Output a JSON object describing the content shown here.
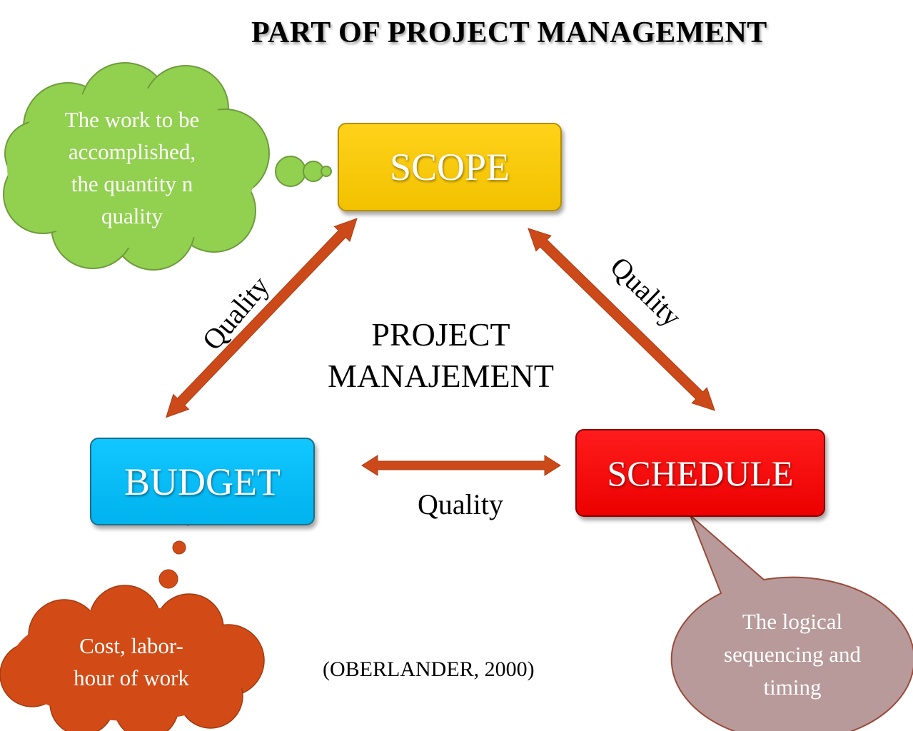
{
  "title": "PART OF PROJECT MANAGEMENT",
  "nodes": {
    "scope": "SCOPE",
    "budget": "BUDGET",
    "schedule": "SCHEDULE"
  },
  "center": {
    "line1": "PROJECT",
    "line2": "MANAJEMENT"
  },
  "edges": {
    "scope_budget": "Quality",
    "scope_schedule": "Quality",
    "budget_schedule": "Quality"
  },
  "bubbles": {
    "scope": [
      "The work to be",
      "accomplished,",
      "the quantity n",
      "quality"
    ],
    "budget": [
      "Cost, labor-",
      "hour of work"
    ],
    "schedule": [
      "The logical",
      "sequencing and",
      "timing"
    ]
  },
  "citation": "(OBERLANDER, 2000)",
  "colors": {
    "scope": "#f5c400",
    "budget": "#00b5f0",
    "schedule": "#f00000",
    "arrow": "#cc4a1a",
    "bubble_green": "#92d050",
    "bubble_orange": "#d24b16",
    "bubble_mauve": "#b89a9a"
  }
}
